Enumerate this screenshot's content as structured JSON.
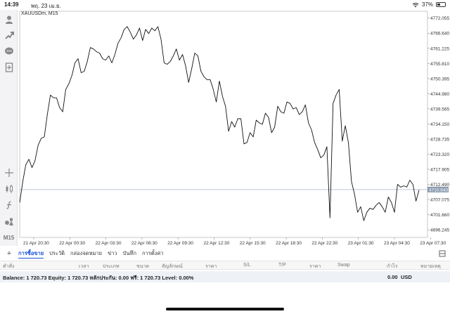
{
  "status": {
    "time": "14:39",
    "date": "พฤ. 23 เม.ย.",
    "battery": "37%"
  },
  "chart": {
    "symbol": "XAUUSDm, M15",
    "current_price": "4710.643",
    "current_label_color": "#8a9bb0"
  },
  "toolbar": {
    "timeframe": "M15",
    "icons": [
      "person-icon",
      "trade-icon",
      "chat-icon",
      "new-order-icon",
      "crosshair-icon",
      "candles-icon",
      "indicator-icon",
      "objects-icon"
    ]
  },
  "chart_data": {
    "type": "line",
    "y_ticks": [
      "4772.055",
      "4766.640",
      "4761.225",
      "4755.810",
      "4750.395",
      "4744.980",
      "4739.565",
      "4734.150",
      "4728.735",
      "4723.320",
      "4717.905",
      "4712.490",
      "4707.075",
      "4701.660",
      "4696.245"
    ],
    "x_ticks": [
      "21 Apr 20:30",
      "22 Apr 00:30",
      "22 Apr 03:30",
      "22 Apr 06:30",
      "22 Apr 09:30",
      "22 Apr 12:30",
      "22 Apr 15:30",
      "22 Apr 18:30",
      "22 Apr 22:30",
      "23 Apr 01:30",
      "23 Apr 04:30",
      "23 Apr 07:30"
    ],
    "ylim": [
      4693.5,
      4774.5
    ],
    "values": [
      4706.0,
      4713.5,
      4719.5,
      4721.5,
      4718.5,
      4721.0,
      4726.5,
      4729.0,
      4729.5,
      4737.5,
      4744.5,
      4743.5,
      4743.5,
      4740.0,
      4738.5,
      4746.5,
      4748.5,
      4751.5,
      4756.0,
      4757.5,
      4752.5,
      4753.0,
      4756.5,
      4761.5,
      4761.0,
      4760.0,
      4759.5,
      4757.5,
      4757.0,
      4758.5,
      4756.0,
      4759.0,
      4763.0,
      4765.0,
      4768.0,
      4769.0,
      4767.0,
      4764.5,
      4766.0,
      4768.5,
      4764.0,
      4768.0,
      4766.5,
      4768.5,
      4767.5,
      4769.0,
      4764.5,
      4756.0,
      4755.5,
      4756.5,
      4758.5,
      4761.0,
      4757.0,
      4759.0,
      4755.0,
      4749.0,
      4754.0,
      4759.5,
      4758.5,
      4753.0,
      4751.0,
      4750.0,
      4750.0,
      4746.5,
      4742.0,
      4749.5,
      4744.0,
      4740.5,
      4731.5,
      4735.0,
      4733.0,
      4736.0,
      4736.0,
      4727.0,
      4727.5,
      4731.0,
      4729.5,
      4735.5,
      4734.5,
      4734.0,
      4738.0,
      4736.5,
      4731.0,
      4733.0,
      4740.5,
      4738.5,
      4738.0,
      4742.0,
      4741.5,
      4739.5,
      4740.0,
      4737.5,
      4738.5,
      4741.0,
      4734.5,
      4732.0,
      4727.5,
      4725.0,
      4722.0,
      4723.0,
      4726.0,
      4700.5,
      4741.5,
      4744.5,
      4746.5,
      4728.0,
      4733.5,
      4727.5,
      4713.5,
      4709.0,
      4702.5,
      4704.5,
      4699.5,
      4702.5,
      4704.0,
      4703.5,
      4705.0,
      4706.0,
      4704.5,
      4702.5,
      4708.0,
      4706.0,
      4702.5,
      4712.5,
      4711.5,
      4712.0,
      4711.5,
      4714.0,
      4712.5,
      4706.5,
      4710.5
    ],
    "current": 4710.643,
    "grid": false
  },
  "tabs": {
    "items": [
      "การซื้อขาย",
      "ประวัติ",
      "กล่องจดหมาย",
      "ข่าว",
      "บันทึก",
      "การตั้งค่า"
    ]
  },
  "columns": [
    "คำสั่ง",
    "เวลา",
    "ประเภท",
    "ขนาด",
    "สัญลักษณ์",
    "ราคา",
    "S/L",
    "T/P",
    "ราคา",
    "Swap",
    "กำไร",
    "หมายเหตุ"
  ],
  "account": {
    "summary": "Balance: 1 720.73 Equity: 1 720.73 หลักประกัน: 0.00 ฟรี: 1 720.73 Level: 0.00%",
    "profit": "0.00",
    "currency": "USD"
  }
}
